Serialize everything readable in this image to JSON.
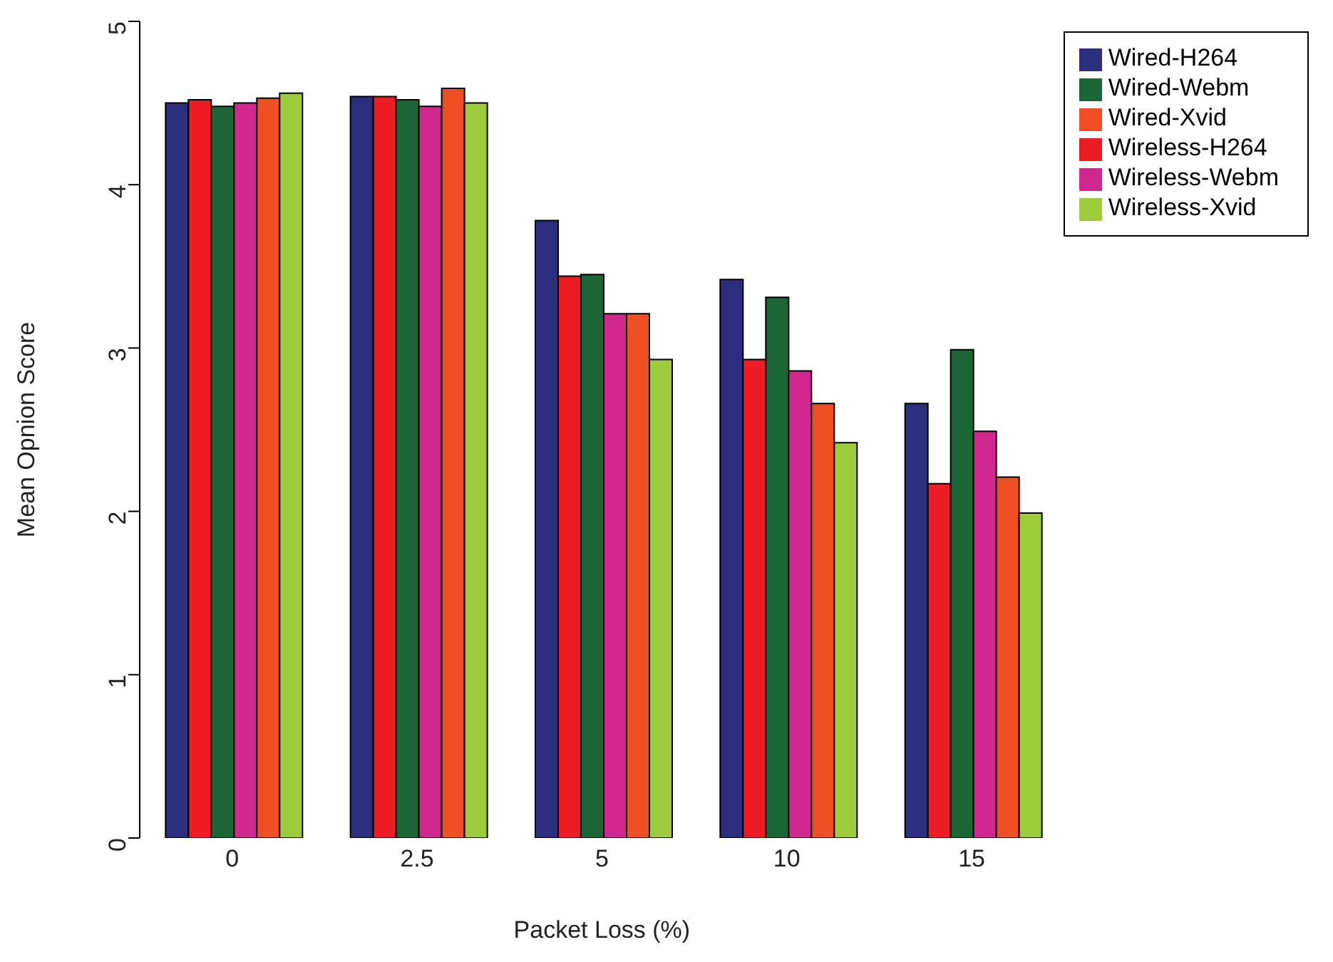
{
  "chart_data": {
    "type": "bar",
    "xlabel": "Packet Loss (%)",
    "ylabel": "Mean Opnion Score",
    "categories": [
      "0",
      "2.5",
      "5",
      "10",
      "15"
    ],
    "series": [
      {
        "name": "Wired-H264",
        "color": "#2b2f7e",
        "values": [
          4.5,
          4.54,
          3.78,
          3.42,
          2.66
        ]
      },
      {
        "name": "Wireless-H264",
        "color": "#ec1c24",
        "values": [
          4.52,
          4.54,
          3.44,
          2.93,
          2.17
        ]
      },
      {
        "name": "Wired-Webm",
        "color": "#1b6536",
        "values": [
          4.48,
          4.52,
          3.45,
          3.31,
          2.99
        ]
      },
      {
        "name": "Wireless-Webm",
        "color": "#d0288f",
        "values": [
          4.5,
          4.48,
          3.21,
          2.86,
          2.49
        ]
      },
      {
        "name": "Wired-Xvid",
        "color": "#f04e23",
        "values": [
          4.53,
          4.59,
          3.21,
          2.66,
          2.21
        ]
      },
      {
        "name": "Wireless-Xvid",
        "color": "#9dcb3b",
        "values": [
          4.56,
          4.5,
          2.93,
          2.42,
          1.99
        ]
      }
    ],
    "ylim": [
      0,
      5
    ],
    "yticks": [
      0,
      1,
      2,
      3,
      4,
      5
    ],
    "grid": false,
    "legend": "top right"
  }
}
